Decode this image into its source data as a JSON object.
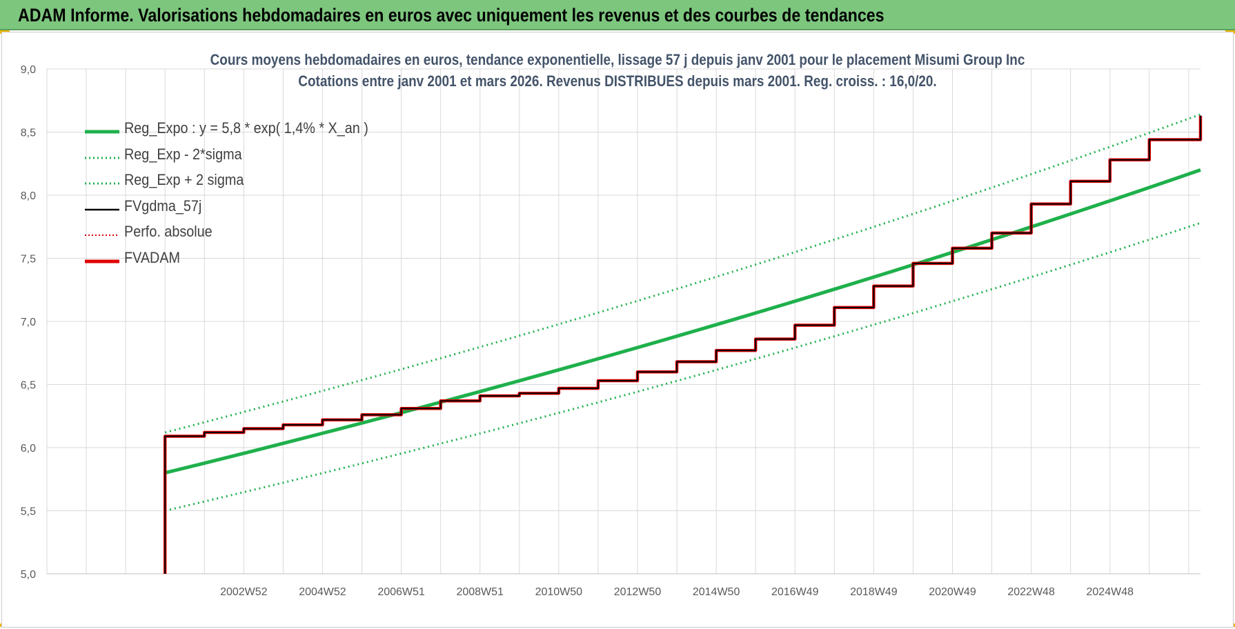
{
  "banner": {
    "title": "ADAM Informe. Valorisations hebdomadaires en euros avec uniquement les revenus et des courbes de tendances",
    "color": "#7dc67e"
  },
  "chart_data": {
    "type": "line",
    "title": "Cours moyens hebdomadaires en euros, tendance exponentielle, lissage 57 j depuis janv 2001 pour le placement Misumi Group Inc",
    "subtitle": "Cotations entre janv 2001 et mars 2026. Revenus DISTRIBUES depuis mars 2001. Reg. croiss. : 16,0/20.",
    "xlabel": "",
    "ylabel": "",
    "ylim": [
      5.0,
      9.0
    ],
    "yticks": [
      "5,0",
      "5,5",
      "6,0",
      "6,5",
      "7,0",
      "7,5",
      "8,0",
      "8,5",
      "9,0"
    ],
    "xlim": [
      1998.0,
      2027.3
    ],
    "xticks": [
      {
        "label": "2002W52",
        "x": 2003.0
      },
      {
        "label": "2004W52",
        "x": 2005.0
      },
      {
        "label": "2006W51",
        "x": 2007.0
      },
      {
        "label": "2008W51",
        "x": 2009.0
      },
      {
        "label": "2010W50",
        "x": 2011.0
      },
      {
        "label": "2012W50",
        "x": 2013.0
      },
      {
        "label": "2014W50",
        "x": 2015.0
      },
      {
        "label": "2016W49",
        "x": 2017.0
      },
      {
        "label": "2018W49",
        "x": 2019.0
      },
      {
        "label": "2020W49",
        "x": 2021.0
      },
      {
        "label": "2022W48",
        "x": 2023.0
      },
      {
        "label": "2024W48",
        "x": 2025.0
      }
    ],
    "grid": true,
    "legend_position": "top-left",
    "series": [
      {
        "name": "Reg_Expo : y = 5,8 * exp( 1,4% *  X_an )",
        "color": "#1fb04c",
        "style": "solid-thick",
        "x": [
          2001.0,
          2027.3
        ],
        "y": [
          5.8,
          8.2
        ]
      },
      {
        "name": "Reg_Exp - 2*sigma",
        "color": "#1fb04c",
        "style": "dotted",
        "x": [
          2001.0,
          2027.3
        ],
        "y": [
          5.5,
          7.78
        ]
      },
      {
        "name": "Reg_Exp + 2 sigma",
        "color": "#1fb04c",
        "style": "dotted",
        "x": [
          2001.0,
          2027.3
        ],
        "y": [
          6.12,
          8.64
        ]
      },
      {
        "name": "FVgdma_57j",
        "color": "#000000",
        "style": "solid-thin",
        "x": [
          2001.0,
          2001.0,
          2002.0,
          2003.0,
          2004.0,
          2005.0,
          2006.0,
          2007.0,
          2008.0,
          2009.0,
          2010.0,
          2011.0,
          2012.0,
          2013.0,
          2014.0,
          2015.0,
          2016.0,
          2017.0,
          2018.0,
          2019.0,
          2020.0,
          2021.0,
          2022.0,
          2023.0,
          2024.0,
          2025.0,
          2026.0,
          2027.3
        ],
        "y": [
          5.0,
          6.09,
          6.12,
          6.15,
          6.18,
          6.22,
          6.26,
          6.31,
          6.37,
          6.41,
          6.43,
          6.47,
          6.53,
          6.6,
          6.68,
          6.77,
          6.86,
          6.97,
          7.11,
          7.28,
          7.46,
          7.58,
          7.7,
          7.93,
          8.11,
          8.28,
          8.44,
          8.63
        ]
      },
      {
        "name": "Perfo. absolue",
        "color": "#e00000",
        "style": "dotted",
        "x": [
          2001.0,
          2001.0,
          2002.0,
          2003.0,
          2004.0,
          2005.0,
          2006.0,
          2007.0,
          2008.0,
          2009.0,
          2010.0,
          2011.0,
          2012.0,
          2013.0,
          2014.0,
          2015.0,
          2016.0,
          2017.0,
          2018.0,
          2019.0,
          2020.0,
          2021.0,
          2022.0,
          2023.0,
          2024.0,
          2025.0,
          2026.0,
          2027.3
        ],
        "y": [
          5.0,
          6.09,
          6.12,
          6.15,
          6.18,
          6.22,
          6.26,
          6.31,
          6.37,
          6.41,
          6.43,
          6.47,
          6.53,
          6.6,
          6.68,
          6.77,
          6.86,
          6.97,
          7.11,
          7.28,
          7.46,
          7.58,
          7.7,
          7.93,
          8.11,
          8.28,
          8.44,
          8.63
        ]
      },
      {
        "name": "FVADAM",
        "color": "#e00000",
        "style": "step-thick",
        "x": [
          2001.0,
          2001.0,
          2002.0,
          2003.0,
          2004.0,
          2005.0,
          2006.0,
          2007.0,
          2008.0,
          2009.0,
          2010.0,
          2011.0,
          2012.0,
          2013.0,
          2014.0,
          2015.0,
          2016.0,
          2017.0,
          2018.0,
          2019.0,
          2020.0,
          2021.0,
          2022.0,
          2023.0,
          2024.0,
          2025.0,
          2026.0,
          2027.3
        ],
        "y": [
          5.0,
          6.09,
          6.12,
          6.15,
          6.18,
          6.22,
          6.26,
          6.31,
          6.37,
          6.41,
          6.43,
          6.47,
          6.53,
          6.6,
          6.68,
          6.77,
          6.86,
          6.97,
          7.11,
          7.28,
          7.46,
          7.58,
          7.7,
          7.93,
          8.11,
          8.28,
          8.44,
          8.63
        ]
      }
    ]
  }
}
